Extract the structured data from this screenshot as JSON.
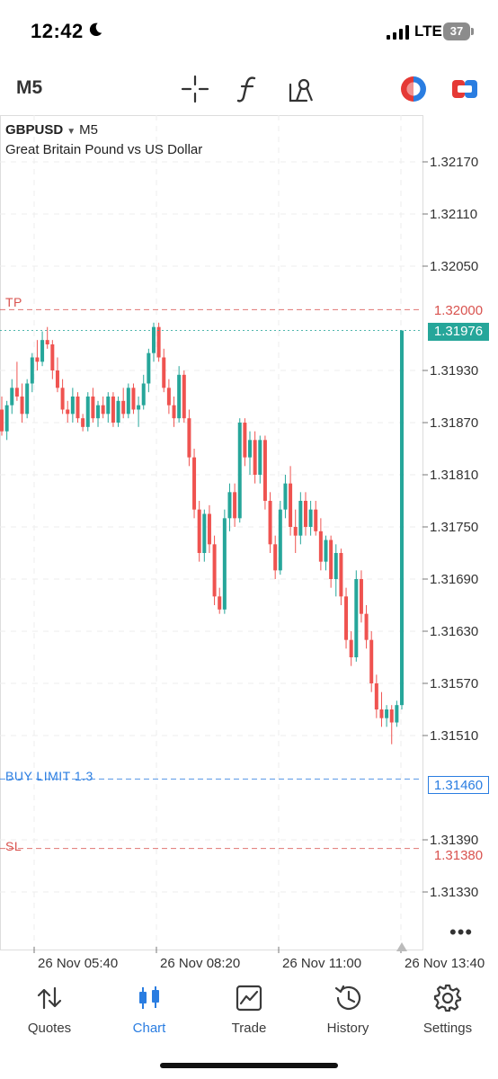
{
  "status_bar": {
    "time": "12:42",
    "network": "LTE",
    "battery": "37"
  },
  "toolbar": {
    "timeframe": "M5",
    "icons": [
      "crosshair-icon",
      "function-icon",
      "objects-icon",
      "one-click-trading-icon",
      "trade-panel-icon"
    ]
  },
  "chart_header": {
    "symbol": "GBPUSD",
    "timeframe": "M5",
    "description": "Great Britain Pound vs US Dollar"
  },
  "price_axis": {
    "ticks": [
      "1.32170",
      "1.32110",
      "1.32050",
      "1.31930",
      "1.31870",
      "1.31810",
      "1.31750",
      "1.31690",
      "1.31630",
      "1.31570",
      "1.31510",
      "1.31390",
      "1.31330"
    ]
  },
  "levels": {
    "tp": {
      "label": "TP",
      "price": "1.32000",
      "color": "#d9534f"
    },
    "current": {
      "price": "1.31976",
      "color": "#26a69a"
    },
    "buy_limit": {
      "label": "BUY LIMIT 1.3",
      "price": "1.31460",
      "color": "#2a7de1"
    },
    "sl": {
      "label": "SL",
      "price": "1.31380",
      "color": "#d9534f"
    }
  },
  "time_axis": [
    "26 Nov 05:40",
    "26 Nov 08:20",
    "26 Nov 11:00",
    "26 Nov 13:40"
  ],
  "colors": {
    "bull": "#26a69a",
    "bear": "#ef5350",
    "accent": "#2a7de1"
  },
  "chart_data": {
    "type": "candlestick",
    "symbol": "GBPUSD",
    "timeframe": "M5",
    "ylim": [
      1.3127,
      1.3223
    ],
    "candles": [
      [
        1.31885,
        1.319,
        1.31855,
        1.3186
      ],
      [
        1.3186,
        1.31895,
        1.3185,
        1.3189
      ],
      [
        1.3189,
        1.3192,
        1.3188,
        1.3191
      ],
      [
        1.3191,
        1.3194,
        1.31895,
        1.319
      ],
      [
        1.319,
        1.31915,
        1.3187,
        1.3188
      ],
      [
        1.3188,
        1.3192,
        1.31875,
        1.31915
      ],
      [
        1.31915,
        1.3195,
        1.31905,
        1.31945
      ],
      [
        1.31945,
        1.31965,
        1.3193,
        1.3194
      ],
      [
        1.3194,
        1.31975,
        1.31935,
        1.31965
      ],
      [
        1.31965,
        1.3198,
        1.31955,
        1.3196
      ],
      [
        1.3196,
        1.31965,
        1.3192,
        1.3193
      ],
      [
        1.3193,
        1.31945,
        1.31905,
        1.3191
      ],
      [
        1.3191,
        1.3192,
        1.3188,
        1.31885
      ],
      [
        1.31885,
        1.31895,
        1.3187,
        1.3188
      ],
      [
        1.3188,
        1.3191,
        1.3187,
        1.319
      ],
      [
        1.319,
        1.31905,
        1.3187,
        1.31875
      ],
      [
        1.31875,
        1.3188,
        1.3186,
        1.31865
      ],
      [
        1.31865,
        1.31905,
        1.3186,
        1.319
      ],
      [
        1.319,
        1.3191,
        1.3187,
        1.31875
      ],
      [
        1.31875,
        1.31895,
        1.31865,
        1.3189
      ],
      [
        1.3189,
        1.319,
        1.31875,
        1.3188
      ],
      [
        1.3188,
        1.31905,
        1.3187,
        1.319
      ],
      [
        1.319,
        1.31905,
        1.31865,
        1.3187
      ],
      [
        1.3187,
        1.319,
        1.31865,
        1.31895
      ],
      [
        1.31895,
        1.3191,
        1.31875,
        1.3188
      ],
      [
        1.3188,
        1.31915,
        1.31875,
        1.3191
      ],
      [
        1.3191,
        1.31915,
        1.3188,
        1.31885
      ],
      [
        1.31885,
        1.319,
        1.31865,
        1.3189
      ],
      [
        1.3189,
        1.31925,
        1.31885,
        1.31915
      ],
      [
        1.31915,
        1.31955,
        1.31905,
        1.3195
      ],
      [
        1.3195,
        1.31985,
        1.3194,
        1.3198
      ],
      [
        1.3198,
        1.31985,
        1.3194,
        1.31945
      ],
      [
        1.31945,
        1.31955,
        1.31905,
        1.3191
      ],
      [
        1.3191,
        1.3192,
        1.3188,
        1.3189
      ],
      [
        1.3189,
        1.319,
        1.31865,
        1.31875
      ],
      [
        1.31875,
        1.31935,
        1.3187,
        1.31925
      ],
      [
        1.31925,
        1.3193,
        1.3187,
        1.31875
      ],
      [
        1.31875,
        1.31885,
        1.3182,
        1.3183
      ],
      [
        1.3183,
        1.3184,
        1.3176,
        1.3177
      ],
      [
        1.3177,
        1.3178,
        1.3171,
        1.3172
      ],
      [
        1.3172,
        1.3177,
        1.3171,
        1.31765
      ],
      [
        1.31765,
        1.31775,
        1.3172,
        1.3173
      ],
      [
        1.3173,
        1.3174,
        1.3166,
        1.3167
      ],
      [
        1.3167,
        1.3168,
        1.3165,
        1.31655
      ],
      [
        1.31655,
        1.3177,
        1.3165,
        1.3176
      ],
      [
        1.3176,
        1.318,
        1.31745,
        1.3179
      ],
      [
        1.3179,
        1.318,
        1.3175,
        1.3176
      ],
      [
        1.3176,
        1.31875,
        1.31755,
        1.3187
      ],
      [
        1.3187,
        1.31875,
        1.3182,
        1.3183
      ],
      [
        1.3183,
        1.3186,
        1.3181,
        1.3185
      ],
      [
        1.3185,
        1.3186,
        1.318,
        1.3181
      ],
      [
        1.3181,
        1.31855,
        1.318,
        1.3185
      ],
      [
        1.3185,
        1.31855,
        1.3177,
        1.3178
      ],
      [
        1.3178,
        1.3179,
        1.3172,
        1.3173
      ],
      [
        1.3173,
        1.3174,
        1.3169,
        1.317
      ],
      [
        1.317,
        1.3178,
        1.31695,
        1.3177
      ],
      [
        1.3177,
        1.3181,
        1.3176,
        1.318
      ],
      [
        1.318,
        1.3182,
        1.3174,
        1.3175
      ],
      [
        1.3175,
        1.3177,
        1.3172,
        1.3174
      ],
      [
        1.3174,
        1.3179,
        1.3173,
        1.3178
      ],
      [
        1.3178,
        1.3179,
        1.3174,
        1.3175
      ],
      [
        1.3175,
        1.3178,
        1.3174,
        1.3177
      ],
      [
        1.3177,
        1.3178,
        1.3174,
        1.31745
      ],
      [
        1.31745,
        1.3176,
        1.317,
        1.3171
      ],
      [
        1.3171,
        1.3174,
        1.317,
        1.31735
      ],
      [
        1.31735,
        1.3174,
        1.3168,
        1.3169
      ],
      [
        1.3169,
        1.3173,
        1.3167,
        1.3172
      ],
      [
        1.3172,
        1.31725,
        1.3166,
        1.3167
      ],
      [
        1.3167,
        1.3168,
        1.3161,
        1.3162
      ],
      [
        1.3162,
        1.3163,
        1.3159,
        1.316
      ],
      [
        1.316,
        1.317,
        1.31595,
        1.3169
      ],
      [
        1.3169,
        1.317,
        1.3164,
        1.3165
      ],
      [
        1.3165,
        1.3166,
        1.3161,
        1.3162
      ],
      [
        1.3162,
        1.3163,
        1.3156,
        1.3157
      ],
      [
        1.3157,
        1.3158,
        1.3153,
        1.3154
      ],
      [
        1.3154,
        1.3156,
        1.3152,
        1.3153
      ],
      [
        1.3153,
        1.31545,
        1.3152,
        1.3154
      ],
      [
        1.3154,
        1.31545,
        1.315,
        1.31525
      ],
      [
        1.31525,
        1.3155,
        1.3152,
        1.31545
      ],
      [
        1.31545,
        1.31976,
        1.3154,
        1.31976
      ]
    ]
  }
}
